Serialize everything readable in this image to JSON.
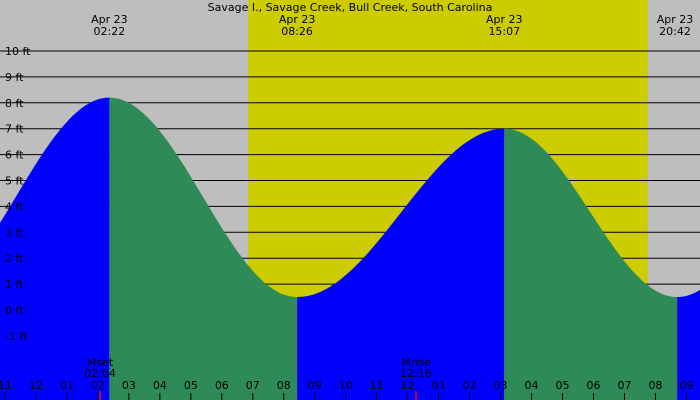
{
  "chart_data": {
    "type": "area",
    "title": "Savage I., Savage Creek, Bull Creek, South Carolina",
    "y_unit": "ft",
    "ylim": [
      -2,
      11
    ],
    "y_ticks": [
      "-1 ft",
      "0 ft",
      "1 ft",
      "2 ft",
      "3 ft",
      "4 ft",
      "5 ft",
      "6 ft",
      "7 ft",
      "8 ft",
      "9 ft",
      "10 ft"
    ],
    "y_tick_values": [
      -1,
      0,
      1,
      2,
      3,
      4,
      5,
      6,
      7,
      8,
      9,
      10
    ],
    "x_range_hours": [
      -1,
      21.6
    ],
    "hour_labels": [
      "11",
      "12",
      "01",
      "02",
      "03",
      "04",
      "05",
      "06",
      "07",
      "08",
      "09",
      "10",
      "11",
      "12",
      "01",
      "02",
      "03",
      "04",
      "05",
      "06",
      "07",
      "08",
      "09"
    ],
    "hour_values": [
      -1,
      0,
      1,
      2,
      3,
      4,
      5,
      6,
      7,
      8,
      9,
      10,
      11,
      12,
      13,
      14,
      15,
      16,
      17,
      18,
      19,
      20,
      21
    ],
    "daylight": {
      "sunrise_hour": 6.85,
      "sunset_hour": 19.75
    },
    "tide_events": [
      {
        "date": "Apr 23",
        "time": "02:22",
        "type": "high",
        "hour": 2.37,
        "height": 8.2
      },
      {
        "date": "Apr 23",
        "time": "08:26",
        "type": "low",
        "hour": 8.43,
        "height": 0.5
      },
      {
        "date": "Apr 23",
        "time": "15:07",
        "type": "high",
        "hour": 15.12,
        "height": 7.0
      },
      {
        "date": "Apr 23",
        "time": "20:42",
        "type": "low",
        "hour": 20.7,
        "height": 0.5
      }
    ],
    "moon_events": [
      {
        "label": "Mset",
        "time": "02:04",
        "hour": 2.07
      },
      {
        "label": "Mrise",
        "time": "12:16",
        "hour": 12.27
      }
    ],
    "colors": {
      "night": "#bebebe",
      "day": "#cccc00",
      "rising": "#0000ff",
      "falling": "#2e8b57",
      "grid": "#000000",
      "moon_tick": "#ff0000"
    },
    "grid": true
  }
}
